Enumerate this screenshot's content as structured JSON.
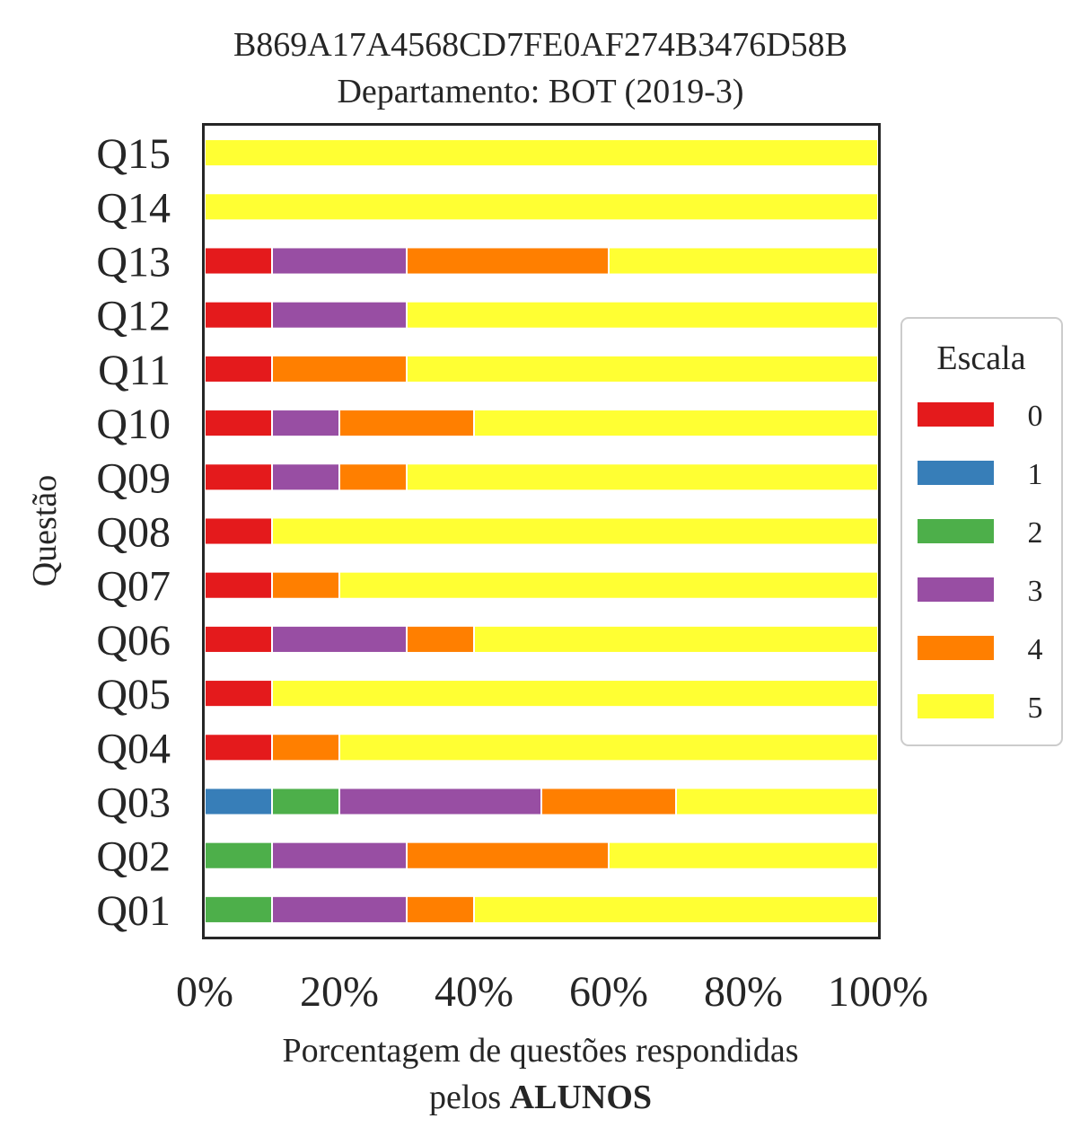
{
  "chart_data": {
    "type": "bar",
    "orientation": "horizontal",
    "stacked": true,
    "title": "B869A17A4568CD7FE0AF274B3476D58B",
    "subtitle": "Departamento: BOT (2019-3)",
    "ylabel": "Questão",
    "xlabel_line1": "Porcentagem de questões respondidas",
    "xlabel_line2_prefix": "pelos ",
    "xlabel_line2_bold": "ALUNOS",
    "xlim": [
      0,
      100
    ],
    "xticks": [
      "0%",
      "20%",
      "40%",
      "60%",
      "80%",
      "100%"
    ],
    "categories": [
      "Q01",
      "Q02",
      "Q03",
      "Q04",
      "Q05",
      "Q06",
      "Q07",
      "Q08",
      "Q09",
      "Q10",
      "Q11",
      "Q12",
      "Q13",
      "Q14",
      "Q15"
    ],
    "series": [
      {
        "name": "0",
        "color": "#e41a1c",
        "values": [
          0,
          0,
          0,
          10,
          10,
          10,
          10,
          10,
          10,
          10,
          10,
          10,
          10,
          0,
          0
        ]
      },
      {
        "name": "1",
        "color": "#377eb8",
        "values": [
          0,
          0,
          10,
          0,
          0,
          0,
          0,
          0,
          0,
          0,
          0,
          0,
          0,
          0,
          0
        ]
      },
      {
        "name": "2",
        "color": "#4daf4a",
        "values": [
          10,
          10,
          10,
          0,
          0,
          0,
          0,
          0,
          0,
          0,
          0,
          0,
          0,
          0,
          0
        ]
      },
      {
        "name": "3",
        "color": "#984ea3",
        "values": [
          20,
          20,
          30,
          0,
          0,
          20,
          0,
          0,
          10,
          10,
          0,
          20,
          20,
          0,
          0
        ]
      },
      {
        "name": "4",
        "color": "#ff7f00",
        "values": [
          10,
          30,
          20,
          10,
          0,
          10,
          10,
          0,
          10,
          20,
          20,
          0,
          30,
          0,
          0
        ]
      },
      {
        "name": "5",
        "color": "#ffff33",
        "values": [
          60,
          40,
          30,
          80,
          90,
          60,
          80,
          90,
          70,
          60,
          70,
          70,
          40,
          100,
          100
        ]
      }
    ],
    "legend": {
      "title": "Escala",
      "placement": "center-right"
    },
    "grid": false
  }
}
